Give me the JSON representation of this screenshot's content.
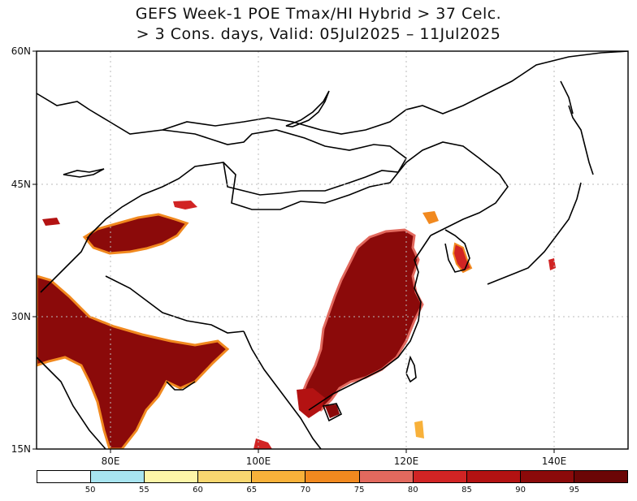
{
  "title": {
    "line1": "GEFS Week-1 POE Tmax/HI Hybrid > 37 Celc.",
    "line2": "> 3 Cons. days, Valid: 05Jul2025 – 11Jul2025"
  },
  "map": {
    "lat_labels": [
      "60N",
      "45N",
      "30N",
      "15N"
    ],
    "lon_labels": [
      "80E",
      "100E",
      "120E",
      "140E"
    ]
  },
  "colorbar": {
    "colors": [
      "#ffffff",
      "#a8e4f0",
      "#fdf5a8",
      "#f8d770",
      "#f8b13a",
      "#f1891f",
      "#e2695e",
      "#d12424",
      "#b31212",
      "#8b0a0a",
      "#6b0606"
    ],
    "labels": [
      "50",
      "55",
      "60",
      "65",
      "70",
      "75",
      "80",
      "85",
      "90",
      "95"
    ]
  }
}
